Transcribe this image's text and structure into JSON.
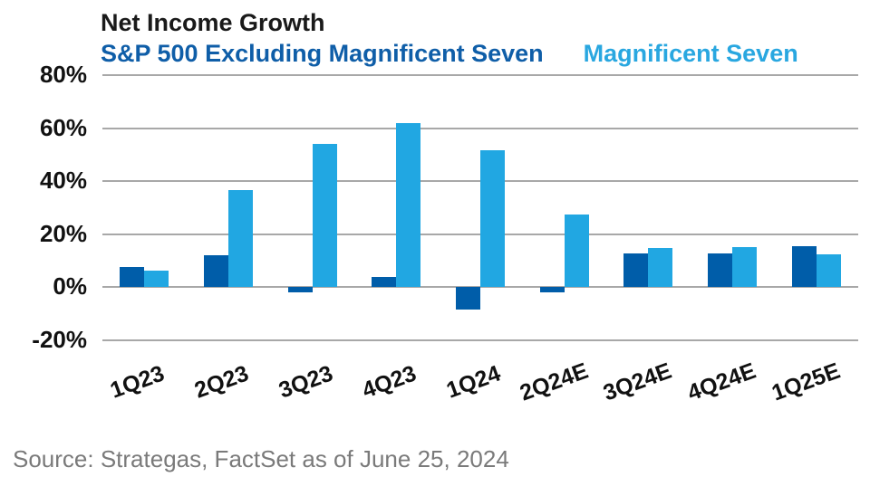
{
  "chart": {
    "title": "Net Income Growth",
    "legend": [
      "S&P 500 Excluding Magnificent Seven",
      "Magnificent Seven"
    ],
    "source": "Source: Strategas, FactSet as of June 25, 2024"
  },
  "chart_data": {
    "type": "bar",
    "title": "Net Income Growth",
    "categories": [
      "1Q23",
      "2Q23",
      "3Q23",
      "4Q23",
      "1Q24",
      "2Q24E",
      "3Q24E",
      "4Q24E",
      "1Q25E"
    ],
    "series": [
      {
        "name": "S&P 500 Excluding Magnificent Seven",
        "color": "#005da9",
        "values": [
          7.5,
          12.2,
          -2.0,
          4.0,
          -8.5,
          -2.0,
          12.8,
          12.8,
          15.4
        ]
      },
      {
        "name": "Magnificent Seven",
        "color": "#21a7e2",
        "values": [
          6.2,
          36.8,
          53.9,
          62.0,
          51.8,
          27.4,
          14.8,
          15.3,
          12.4
        ]
      }
    ],
    "xlabel": "",
    "ylabel": "",
    "ylim": [
      -20,
      80
    ],
    "yticks": [
      80,
      60,
      40,
      20,
      0,
      -20
    ],
    "ytick_suffix": "%",
    "grid": true,
    "gridline_color": "#a8a8a8",
    "legend_position": "top-left",
    "x_label_rotation_deg": -20
  },
  "colors": {
    "bar_dark_blue": "#005da9",
    "bar_light_blue": "#21a7e2",
    "legend_dark_text": "#0f5ea8",
    "legend_light_text": "#29a7e0",
    "gridline": "#a8a8a8",
    "axis_text": "#111111",
    "source_text": "#7a7a7a"
  }
}
